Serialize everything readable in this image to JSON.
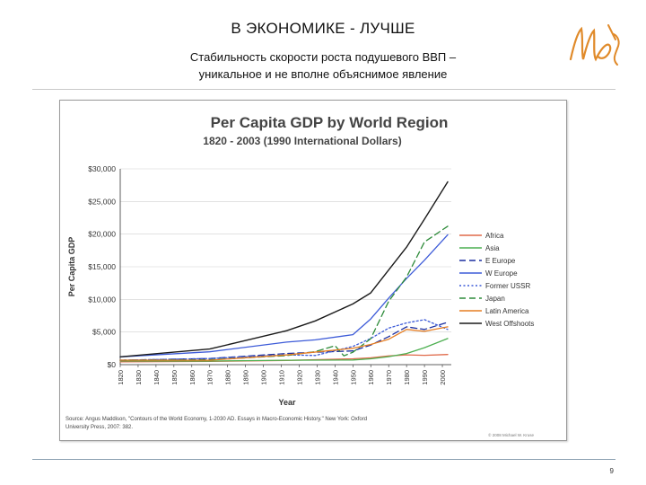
{
  "slide": {
    "title": "В ЭКОНОМИКЕ - ЛУЧШЕ",
    "subtitle_line1": "Стабильность скорости роста подушевого ВВП –",
    "subtitle_line2": "уникальное и не вполне объяснимое явление",
    "page_number": "9",
    "logo_text": "Ub"
  },
  "colors": {
    "Africa": "#e06a4a",
    "Asia": "#4caf50",
    "E Europe": "#1c2fa0",
    "W Europe": "#3d5bd8",
    "Former USSR": "#3d5bd8",
    "Japan": "#2e8b3a",
    "Latin America": "#e67e22",
    "West Offshoots": "#1a1a1a"
  },
  "chart_data": {
    "type": "line",
    "title": "Per Capita GDP by World Region",
    "subtitle": "1820 - 2003 (1990 International Dollars)",
    "xlabel": "Year",
    "ylabel": "Per Capita GDP",
    "xlim": [
      1820,
      2005
    ],
    "ylim": [
      0,
      30000
    ],
    "x_ticks": [
      "1820",
      "1830",
      "1840",
      "1850",
      "1860",
      "1870",
      "1880",
      "1890",
      "1900",
      "1910",
      "1920",
      "1930",
      "1940",
      "1950",
      "1960",
      "1970",
      "1980",
      "1990",
      "2000"
    ],
    "y_ticks": [
      "$0",
      "$5,000",
      "$10,000",
      "$15,000",
      "$20,000",
      "$25,000",
      "$30,000"
    ],
    "legend_position": "right",
    "source": "Source: Angus Maddison, \"Contours of the World Economy, 1-2030 AD. Essays in Macro-Economic History.\" New York: Oxford University Press, 2007: 382.",
    "copyright": "© 2008 Michael W. Kruse",
    "series": [
      {
        "name": "Africa",
        "dash": "solid",
        "x": [
          1820,
          1870,
          1913,
          1950,
          1960,
          1970,
          1980,
          1990,
          2003
        ],
        "y": [
          420,
          500,
          640,
          890,
          1050,
          1330,
          1500,
          1430,
          1550
        ]
      },
      {
        "name": "Asia",
        "dash": "solid",
        "x": [
          1820,
          1870,
          1913,
          1950,
          1960,
          1970,
          1980,
          1990,
          2003
        ],
        "y": [
          580,
          550,
          680,
          720,
          900,
          1230,
          1700,
          2600,
          4000
        ]
      },
      {
        "name": "E Europe",
        "dash": "dashed",
        "x": [
          1820,
          1870,
          1913,
          1929,
          1950,
          1960,
          1970,
          1980,
          1990,
          2003
        ],
        "y": [
          680,
          940,
          1700,
          1900,
          2100,
          3000,
          4300,
          5800,
          5400,
          6500
        ]
      },
      {
        "name": "W Europe",
        "dash": "solid",
        "x": [
          1820,
          1870,
          1913,
          1929,
          1950,
          1960,
          1970,
          1980,
          1990,
          2003
        ],
        "y": [
          1200,
          1970,
          3450,
          3800,
          4600,
          7000,
          10200,
          13200,
          16000,
          19900
        ]
      },
      {
        "name": "Former USSR",
        "dash": "dotted",
        "x": [
          1820,
          1870,
          1913,
          1929,
          1950,
          1960,
          1970,
          1980,
          1990,
          2003
        ],
        "y": [
          690,
          940,
          1500,
          1400,
          2800,
          4000,
          5600,
          6400,
          6900,
          5400
        ]
      },
      {
        "name": "Japan",
        "dash": "dashed",
        "x": [
          1820,
          1870,
          1913,
          1929,
          1940,
          1945,
          1950,
          1960,
          1970,
          1980,
          1990,
          2003
        ],
        "y": [
          670,
          740,
          1390,
          2000,
          2900,
          1350,
          1900,
          3980,
          9700,
          13400,
          18800,
          21200
        ]
      },
      {
        "name": "Latin America",
        "dash": "solid",
        "x": [
          1820,
          1870,
          1913,
          1950,
          1960,
          1970,
          1980,
          1990,
          2003
        ],
        "y": [
          690,
          680,
          1480,
          2500,
          3100,
          3900,
          5400,
          5100,
          5800
        ]
      },
      {
        "name": "West Offshoots",
        "dash": "solid",
        "x": [
          1820,
          1870,
          1913,
          1929,
          1950,
          1960,
          1970,
          1980,
          1990,
          2003
        ],
        "y": [
          1200,
          2400,
          5200,
          6700,
          9300,
          11000,
          14500,
          18000,
          22300,
          28000
        ]
      }
    ]
  }
}
